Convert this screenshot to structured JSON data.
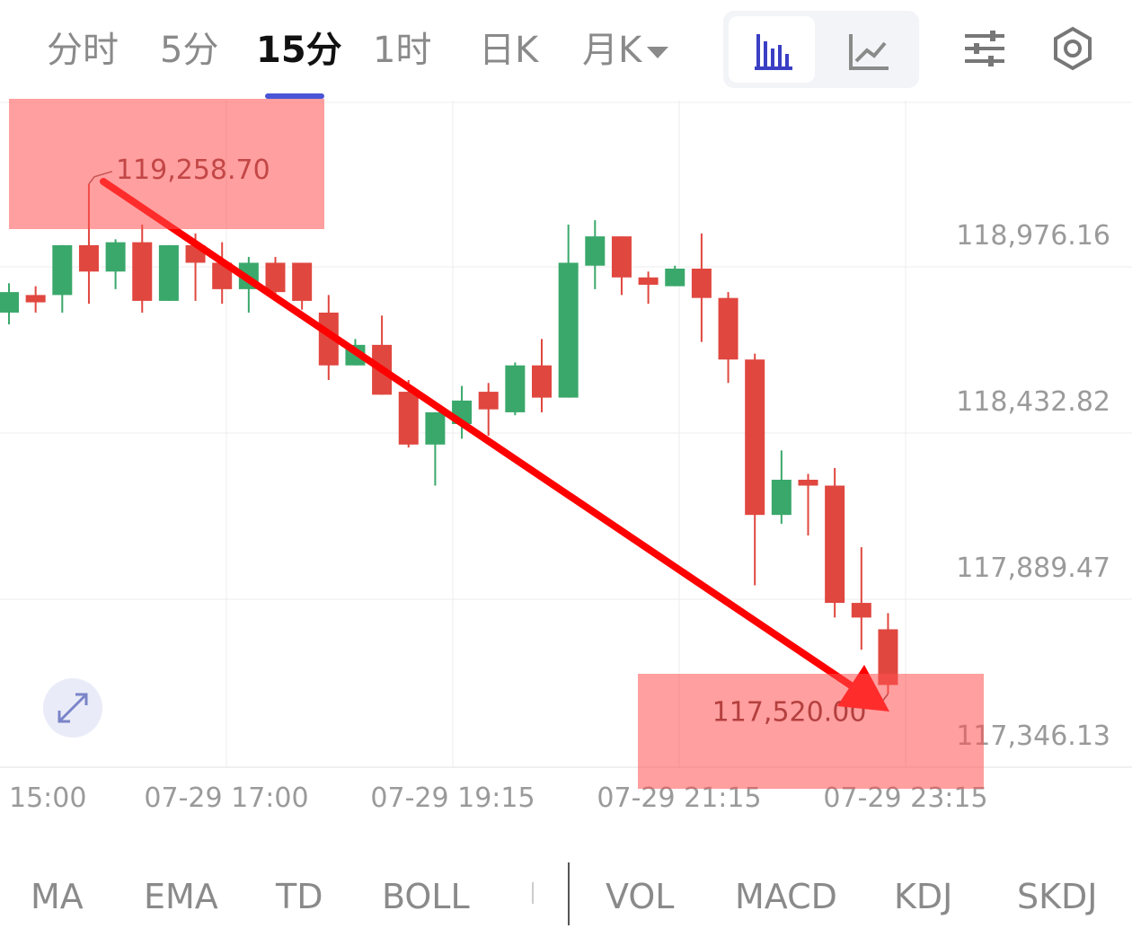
{
  "tabs": {
    "fen_shi": "分时",
    "m5": "5分",
    "m15": "15分",
    "h1": "1时",
    "day_k": "日K",
    "month_k": "月K"
  },
  "toolbar_icons": [
    "candlestick-chart-icon",
    "line-chart-icon",
    "indicator-settings-icon",
    "gear-icon"
  ],
  "colors": {
    "up": "#3aa86b",
    "down": "#e0473f",
    "accent": "#4a55d6",
    "highlight": "rgba(255,80,80,0.55)",
    "arrow": "#ff0000"
  },
  "annotations": {
    "high": "119,258.70",
    "low": "117,520.00"
  },
  "chart_data": {
    "type": "candlestick",
    "y_labels": [
      "118,976.16",
      "118,432.82",
      "117,889.47",
      "117,346.13"
    ],
    "x_labels": [
      "15:00",
      "07-29 17:00",
      "07-29 19:15",
      "07-29 21:15",
      "07-29 23:15"
    ],
    "candles": [
      {
        "o": 118820,
        "c": 118890,
        "h": 118920,
        "l": 118780
      },
      {
        "o": 118880,
        "c": 118855,
        "h": 118910,
        "l": 118820
      },
      {
        "o": 118880,
        "c": 119050,
        "h": 119050,
        "l": 118820
      },
      {
        "o": 119050,
        "c": 118960,
        "h": 119258.7,
        "l": 118850
      },
      {
        "o": 118960,
        "c": 119060,
        "h": 119070,
        "l": 118900
      },
      {
        "o": 119060,
        "c": 118860,
        "h": 119120,
        "l": 118820
      },
      {
        "o": 118860,
        "c": 119050,
        "h": 119050,
        "l": 118860
      },
      {
        "o": 119050,
        "c": 118990,
        "h": 119090,
        "l": 118860
      },
      {
        "o": 118990,
        "c": 118900,
        "h": 119060,
        "l": 118850
      },
      {
        "o": 118900,
        "c": 118990,
        "h": 119010,
        "l": 118820
      },
      {
        "o": 118990,
        "c": 118890,
        "h": 119010,
        "l": 118860
      },
      {
        "o": 118990,
        "c": 118860,
        "h": 118990,
        "l": 118830
      },
      {
        "o": 118820,
        "c": 118640,
        "h": 118880,
        "l": 118590
      },
      {
        "o": 118640,
        "c": 118710,
        "h": 118730,
        "l": 118640
      },
      {
        "o": 118710,
        "c": 118540,
        "h": 118810,
        "l": 118540
      },
      {
        "o": 118550,
        "c": 118370,
        "h": 118590,
        "l": 118360
      },
      {
        "o": 118370,
        "c": 118480,
        "h": 118480,
        "l": 118230
      },
      {
        "o": 118440,
        "c": 118520,
        "h": 118570,
        "l": 118390
      },
      {
        "o": 118550,
        "c": 118490,
        "h": 118580,
        "l": 118400
      },
      {
        "o": 118480,
        "c": 118640,
        "h": 118650,
        "l": 118470
      },
      {
        "o": 118640,
        "c": 118530,
        "h": 118730,
        "l": 118480
      },
      {
        "o": 118530,
        "c": 118990,
        "h": 119120,
        "l": 118530
      },
      {
        "o": 118980,
        "c": 119080,
        "h": 119135,
        "l": 118900
      },
      {
        "o": 119080,
        "c": 118940,
        "h": 119080,
        "l": 118880
      },
      {
        "o": 118940,
        "c": 118915,
        "h": 118960,
        "l": 118850
      },
      {
        "o": 118910,
        "c": 118970,
        "h": 118980,
        "l": 118910
      },
      {
        "o": 118970,
        "c": 118870,
        "h": 119090,
        "l": 118720
      },
      {
        "o": 118870,
        "c": 118660,
        "h": 118890,
        "l": 118580
      },
      {
        "o": 118660,
        "c": 118130,
        "h": 118680,
        "l": 117890
      },
      {
        "o": 118130,
        "c": 118250,
        "h": 118350,
        "l": 118100
      },
      {
        "o": 118250,
        "c": 118230,
        "h": 118270,
        "l": 118060
      },
      {
        "o": 118230,
        "c": 117830,
        "h": 118290,
        "l": 117780
      },
      {
        "o": 117830,
        "c": 117780,
        "h": 118020,
        "l": 117670
      },
      {
        "o": 117740,
        "c": 117550,
        "h": 117795,
        "l": 117520
      }
    ]
  },
  "indicators": {
    "main": [
      "MA",
      "EMA",
      "TD",
      "BOLL"
    ],
    "sub": [
      "VOL",
      "MACD",
      "KDJ",
      "SKDJ"
    ]
  }
}
